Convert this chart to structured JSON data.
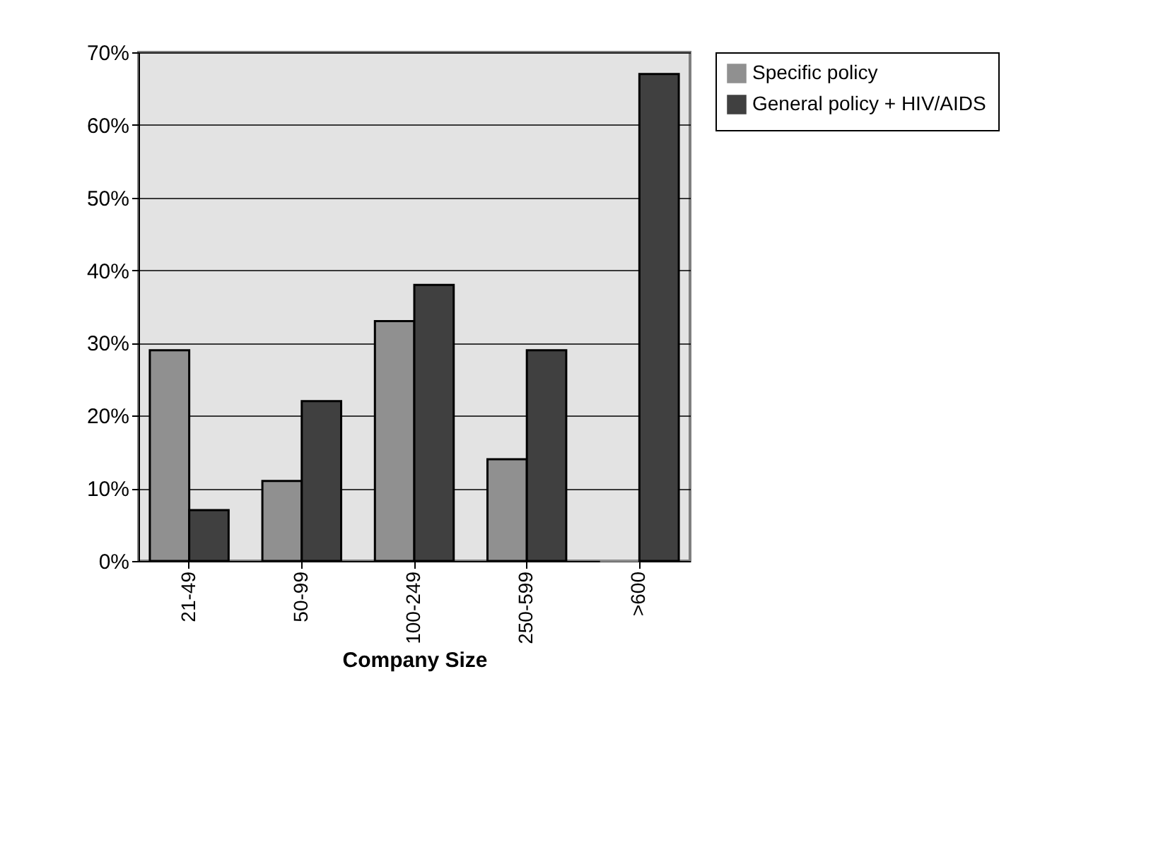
{
  "chart_data": {
    "type": "bar",
    "xlabel": "Company Size",
    "categories": [
      "21-49",
      "50-99",
      "100-249",
      "250-599",
      ">600"
    ],
    "series": [
      {
        "name": "Specific policy",
        "color": "#909090",
        "values": [
          29,
          11,
          33,
          14,
          0
        ]
      },
      {
        "name": "General policy + HIV/AIDS",
        "color": "#404040",
        "values": [
          7,
          22,
          38,
          29,
          67
        ]
      }
    ],
    "ylim": [
      0,
      70
    ],
    "yticks": [
      {
        "value": 0,
        "label": "0%"
      },
      {
        "value": 10,
        "label": "10%"
      },
      {
        "value": 20,
        "label": "20%"
      },
      {
        "value": 30,
        "label": "30%"
      },
      {
        "value": 40,
        "label": "40%"
      },
      {
        "value": 50,
        "label": "50%"
      },
      {
        "value": 60,
        "label": "60%"
      },
      {
        "value": 70,
        "label": "70%"
      }
    ],
    "grid": "y",
    "legend": "right"
  }
}
